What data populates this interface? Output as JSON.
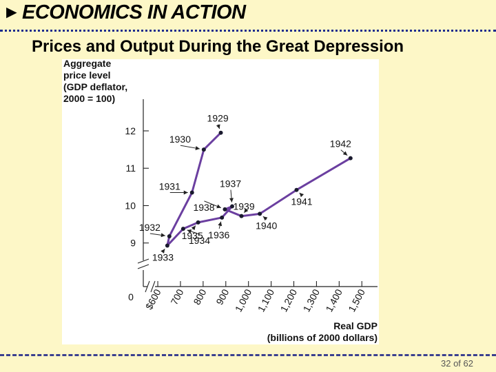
{
  "header": {
    "arrow": "►",
    "title": "ECONOMICS IN ACTION"
  },
  "slide": {
    "title": "Prices and Output During the Great Depression"
  },
  "footer": {
    "page": "32 of 62"
  },
  "colors": {
    "background": "#fdf7c7",
    "line": "#6b3fa0",
    "point": "#1a1a2e",
    "header_rule": "#1b2a8c"
  },
  "chart_data": {
    "type": "line",
    "ylabel_lines": [
      "Aggregate",
      "price level",
      "(GDP deflator,",
      "2000 = 100)"
    ],
    "xlabel_lines": [
      "Real GDP",
      "(billions of 2000 dollars)"
    ],
    "y_origin_label": "0",
    "x_ticks": [
      {
        "value": 600,
        "label": "$600"
      },
      {
        "value": 700,
        "label": "700"
      },
      {
        "value": 800,
        "label": "800"
      },
      {
        "value": 900,
        "label": "900"
      },
      {
        "value": 1000,
        "label": "1,000"
      },
      {
        "value": 1100,
        "label": "1,100"
      },
      {
        "value": 1200,
        "label": "1,200"
      },
      {
        "value": 1300,
        "label": "1,300"
      },
      {
        "value": 1400,
        "label": "1,400"
      },
      {
        "value": 1500,
        "label": "1,500"
      }
    ],
    "y_ticks": [
      {
        "value": 9,
        "label": "9"
      },
      {
        "value": 10,
        "label": "10"
      },
      {
        "value": 11,
        "label": "11"
      },
      {
        "value": 12,
        "label": "12"
      }
    ],
    "xlim": [
      530,
      1560
    ],
    "ylim": [
      8.7,
      12.7
    ],
    "axis_breaks": true,
    "points": [
      {
        "year": "1929",
        "x": 878,
        "y": 11.95
      },
      {
        "year": "1930",
        "x": 803,
        "y": 11.5
      },
      {
        "year": "1931",
        "x": 751,
        "y": 10.35
      },
      {
        "year": "1932",
        "x": 651,
        "y": 9.18
      },
      {
        "year": "1933",
        "x": 642,
        "y": 8.93
      },
      {
        "year": "1934",
        "x": 712,
        "y": 9.38
      },
      {
        "year": "1935",
        "x": 778,
        "y": 9.55
      },
      {
        "year": "1936",
        "x": 883,
        "y": 9.68
      },
      {
        "year": "1937",
        "x": 928,
        "y": 9.98
      },
      {
        "year": "1938",
        "x": 896,
        "y": 9.9
      },
      {
        "year": "1939",
        "x": 969,
        "y": 9.72
      },
      {
        "year": "1940",
        "x": 1050,
        "y": 9.78
      },
      {
        "year": "1941",
        "x": 1212,
        "y": 10.42
      },
      {
        "year": "1942",
        "x": 1450,
        "y": 11.27
      }
    ],
    "annotations": [
      {
        "text": "1929",
        "at": "1929",
        "side": "above"
      },
      {
        "text": "1930",
        "at": "1930",
        "side": "upper-left"
      },
      {
        "text": "1931",
        "at": "1931",
        "side": "left"
      },
      {
        "text": "1932",
        "at": "1932",
        "side": "left"
      },
      {
        "text": "1933",
        "at": "1933",
        "side": "below"
      },
      {
        "text": "1934",
        "at": "1934",
        "side": "below"
      },
      {
        "text": "1935",
        "at": "1935",
        "side": "below"
      },
      {
        "text": "1936",
        "at": "1936",
        "side": "below-right"
      },
      {
        "text": "1937",
        "at": "1937",
        "side": "above"
      },
      {
        "text": "1938",
        "at": "1938",
        "side": "left"
      },
      {
        "text": "1939",
        "at": "1939",
        "side": "above-right"
      },
      {
        "text": "1940",
        "at": "1940",
        "side": "below"
      },
      {
        "text": "1941",
        "at": "1941",
        "side": "below-right"
      },
      {
        "text": "1942",
        "at": "1942",
        "side": "above"
      }
    ]
  }
}
